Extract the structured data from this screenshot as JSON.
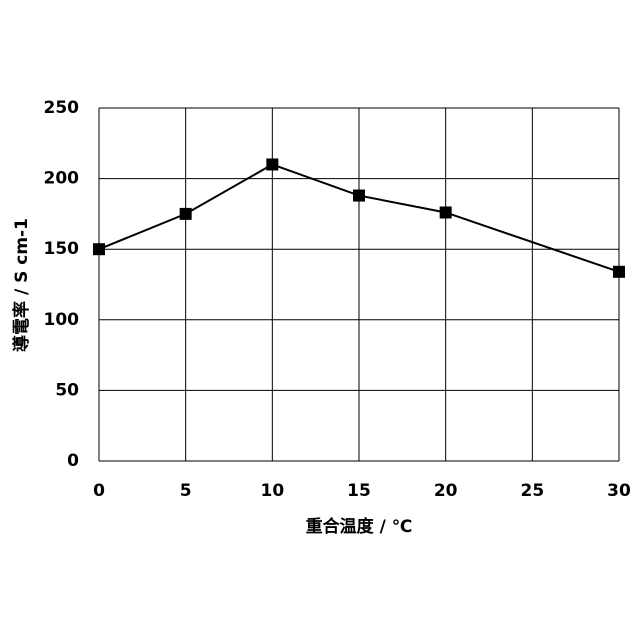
{
  "chart_data": {
    "type": "line",
    "x_label": "重合温度 / ℃",
    "y_label": "導電率 / S cm-1",
    "x": [
      0,
      5,
      10,
      15,
      20,
      30
    ],
    "series": [
      {
        "color": "#000000",
        "values": [
          150,
          175,
          210,
          188,
          176,
          134
        ]
      }
    ],
    "xlim": [
      0,
      30
    ],
    "xticks": [
      0,
      5,
      10,
      15,
      20,
      25,
      30
    ],
    "ylim": [
      0,
      250
    ],
    "yticks": [
      0,
      50,
      100,
      150,
      200,
      250
    ],
    "grid": true,
    "marker": "square"
  }
}
